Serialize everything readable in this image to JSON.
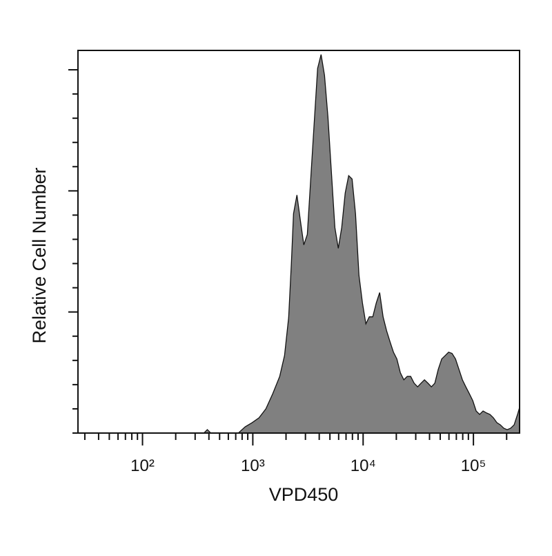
{
  "chart_data": {
    "type": "area",
    "x_label": "VPD450",
    "y_label": "Relative Cell Number",
    "xscale": "log",
    "xlim": [
      26,
      262000
    ],
    "ylim": [
      0,
      158
    ],
    "xticks": [
      {
        "value": 100,
        "label": "10²"
      },
      {
        "value": 1000,
        "label": "10³"
      },
      {
        "value": 10000,
        "label": "10⁴"
      },
      {
        "value": 100000,
        "label": "10⁵"
      }
    ],
    "xminor": [
      30,
      40,
      50,
      60,
      70,
      80,
      90,
      200,
      300,
      400,
      500,
      600,
      700,
      800,
      900,
      2000,
      3000,
      4000,
      5000,
      6000,
      7000,
      8000,
      9000,
      20000,
      30000,
      40000,
      50000,
      60000,
      70000,
      80000,
      90000,
      200000
    ],
    "yticks": [
      0,
      10,
      20,
      30,
      40,
      50,
      60,
      70,
      80,
      90,
      100,
      110,
      120,
      130,
      140,
      150
    ],
    "color": "#808080",
    "x": [
      26,
      360,
      387,
      416,
      739,
      853,
      986,
      1138,
      1314,
      1517,
      1753,
      1939,
      2113,
      2239,
      2339,
      2512,
      2700,
      2900,
      3119,
      3350,
      3597,
      3868,
      4159,
      4467,
      4797,
      5158,
      5546,
      5957,
      6397,
      6879,
      7396,
      7943,
      8531,
      9173,
      9863,
      10593,
      11376,
      12232,
      13152,
      14125,
      15171,
      16313,
      17539,
      18836,
      20230,
      21752,
      23388,
      25119,
      26977,
      29007,
      31189,
      33497,
      35975,
      38681,
      41591,
      44668,
      47973,
      51582,
      55463,
      59566,
      63973,
      68786,
      73961,
      79433,
      85310,
      91728,
      98628,
      105925,
      113763,
      122324,
      131522,
      141254,
      151705,
      163130,
      175388,
      188365,
      202302,
      217520,
      233884,
      251189,
      262000
    ],
    "values": [
      0,
      0,
      1.4,
      0,
      0,
      2.6,
      4.3,
      6.3,
      10,
      16.3,
      23.4,
      32,
      47.7,
      70.6,
      90.6,
      98.3,
      87.7,
      77.7,
      82,
      104.9,
      127.7,
      150.6,
      156.3,
      147.7,
      130.6,
      107.7,
      84.9,
      76.3,
      84.9,
      99.1,
      106.3,
      104.9,
      90.6,
      65.1,
      53.7,
      45.1,
      48,
      48,
      53.7,
      58,
      48,
      42.3,
      37.7,
      33.4,
      30.6,
      24.9,
      22,
      23.4,
      23.4,
      20.6,
      19.1,
      20.6,
      22,
      20.6,
      19.1,
      20.6,
      26.3,
      30.6,
      32,
      33.4,
      32.9,
      30.6,
      26.3,
      22,
      19.1,
      16.3,
      13.4,
      9.1,
      7.7,
      9.1,
      8.3,
      7.7,
      6.3,
      4.3,
      3.4,
      2,
      1.4,
      2,
      3.4,
      7.7,
      10.6
    ]
  }
}
